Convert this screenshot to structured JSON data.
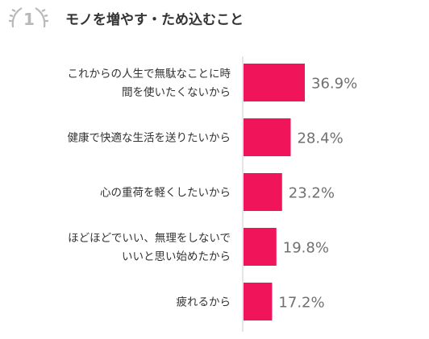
{
  "chart_data": {
    "type": "bar",
    "orientation": "horizontal",
    "title": "モノを増やす・ため込むこと",
    "title_number": "1",
    "categories": [
      [
        "これからの人生で無駄なことに時",
        "間を使いたくないから"
      ],
      [
        "健康で快適な生活を送りたいから"
      ],
      [
        "心の重荷を軽くしたいから"
      ],
      [
        "ほどほどでいい、無理をしないで",
        "いいと思い始めたから"
      ],
      [
        "疲れるから"
      ]
    ],
    "values": [
      36.9,
      28.4,
      23.2,
      19.8,
      17.2
    ],
    "value_labels": [
      "36.9%",
      "28.4%",
      "23.2%",
      "19.8%",
      "17.2%"
    ],
    "xlim": [
      0,
      40
    ],
    "grid": false,
    "legend": "none"
  },
  "colors": {
    "bar": "#f0145a",
    "text": "#333333",
    "value_text": "#707070",
    "axis": "#cccccc",
    "title_badge": "#b8b8b8"
  }
}
